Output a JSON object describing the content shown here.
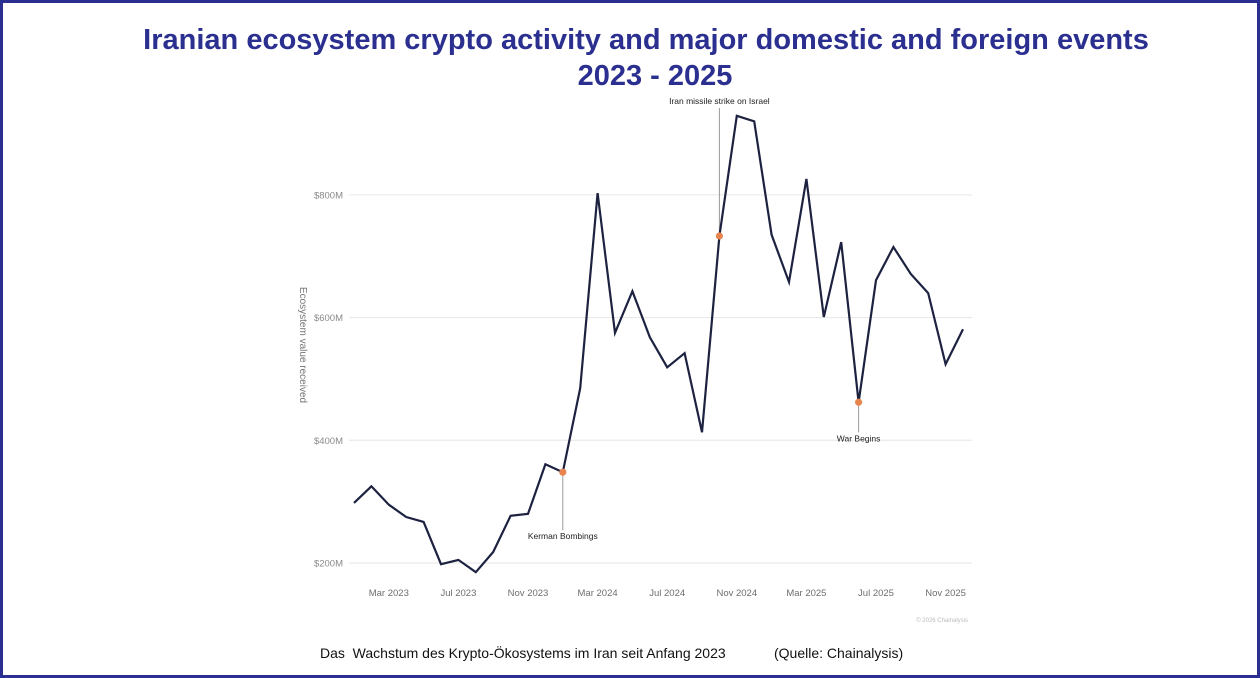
{
  "title": {
    "line1": "Iranian ecosystem crypto activity and major domestic and foreign events",
    "line2": "2023 - 2025"
  },
  "caption": "Das  Wachstum des Krypto-Ökosystems im Iran seit Anfang 2023",
  "source": "(Quelle: Chainalysis)",
  "colors": {
    "frame": "#2b2f8f",
    "title": "#2b2f8f",
    "line": "#1c2240",
    "marker": "#e8854f",
    "grid": "#e6e6e6"
  },
  "chart_data": {
    "type": "line",
    "title": "Iranian ecosystem crypto activity and major domestic and foreign events 2023 - 2025",
    "xlabel": "",
    "ylabel": "Ecosystem value received",
    "x": [
      "Jan 2023",
      "Feb 2023",
      "Mar 2023",
      "Apr 2023",
      "May 2023",
      "Jun 2023",
      "Jul 2023",
      "Aug 2023",
      "Sep 2023",
      "Oct 2023",
      "Nov 2023",
      "Dec 2023",
      "Jan 2024",
      "Feb 2024",
      "Mar 2024",
      "Apr 2024",
      "May 2024",
      "Jun 2024",
      "Jul 2024",
      "Aug 2024",
      "Sep 2024",
      "Oct 2024",
      "Nov 2024",
      "Dec 2024",
      "Jan 2025",
      "Feb 2025",
      "Mar 2025",
      "Apr 2025",
      "May 2025",
      "Jun 2025",
      "Jul 2025",
      "Aug 2025",
      "Sep 2025",
      "Oct 2025",
      "Nov 2025",
      "Dec 2025"
    ],
    "series": [
      {
        "name": "Ecosystem value received (USD millions)",
        "values": [
          298,
          325,
          295,
          275,
          267,
          198,
          205,
          185,
          218,
          277,
          280,
          361,
          348,
          485,
          803,
          575,
          643,
          568,
          519,
          542,
          413,
          733,
          929,
          920,
          735,
          658,
          826,
          601,
          723,
          462,
          661,
          715,
          671,
          640,
          524,
          581
        ]
      }
    ],
    "ylim": [
      170,
      960
    ],
    "yticks": [
      200,
      400,
      600,
      800
    ],
    "ytick_labels": [
      "$200M",
      "$400M",
      "$600M",
      "$800M"
    ],
    "xtick_labels": [
      "Mar 2023",
      "Jul 2023",
      "Nov 2023",
      "Mar 2024",
      "Jul 2024",
      "Nov 2024",
      "Mar 2025",
      "Jul 2025",
      "Nov 2025"
    ],
    "xtick_indices": [
      2,
      6,
      10,
      14,
      18,
      22,
      26,
      30,
      34
    ],
    "grid": true,
    "annotations": [
      {
        "label": "Kerman Bombings",
        "index": 12,
        "placement": "below"
      },
      {
        "label": "Iran missile strike on Israel",
        "index": 21,
        "placement": "above"
      },
      {
        "label": "War Begins",
        "index": 29,
        "placement": "below"
      }
    ],
    "watermark": "© 2026 Chainalysis"
  }
}
